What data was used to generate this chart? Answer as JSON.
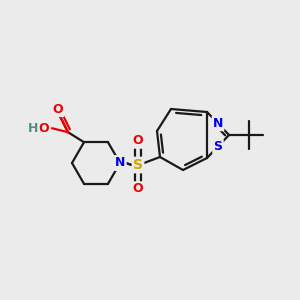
{
  "bg_color": "#ebebeb",
  "bond_color": "#1a1a1a",
  "atom_colors": {
    "N": "#0000ee",
    "O": "#ee0000",
    "S_sulfonyl": "#ccaa00",
    "S_thiazole": "#0000ee",
    "H": "#4a9090",
    "C": "#1a1a1a"
  },
  "figsize": [
    3.0,
    3.0
  ],
  "dpi": 100,
  "lw": 1.6
}
